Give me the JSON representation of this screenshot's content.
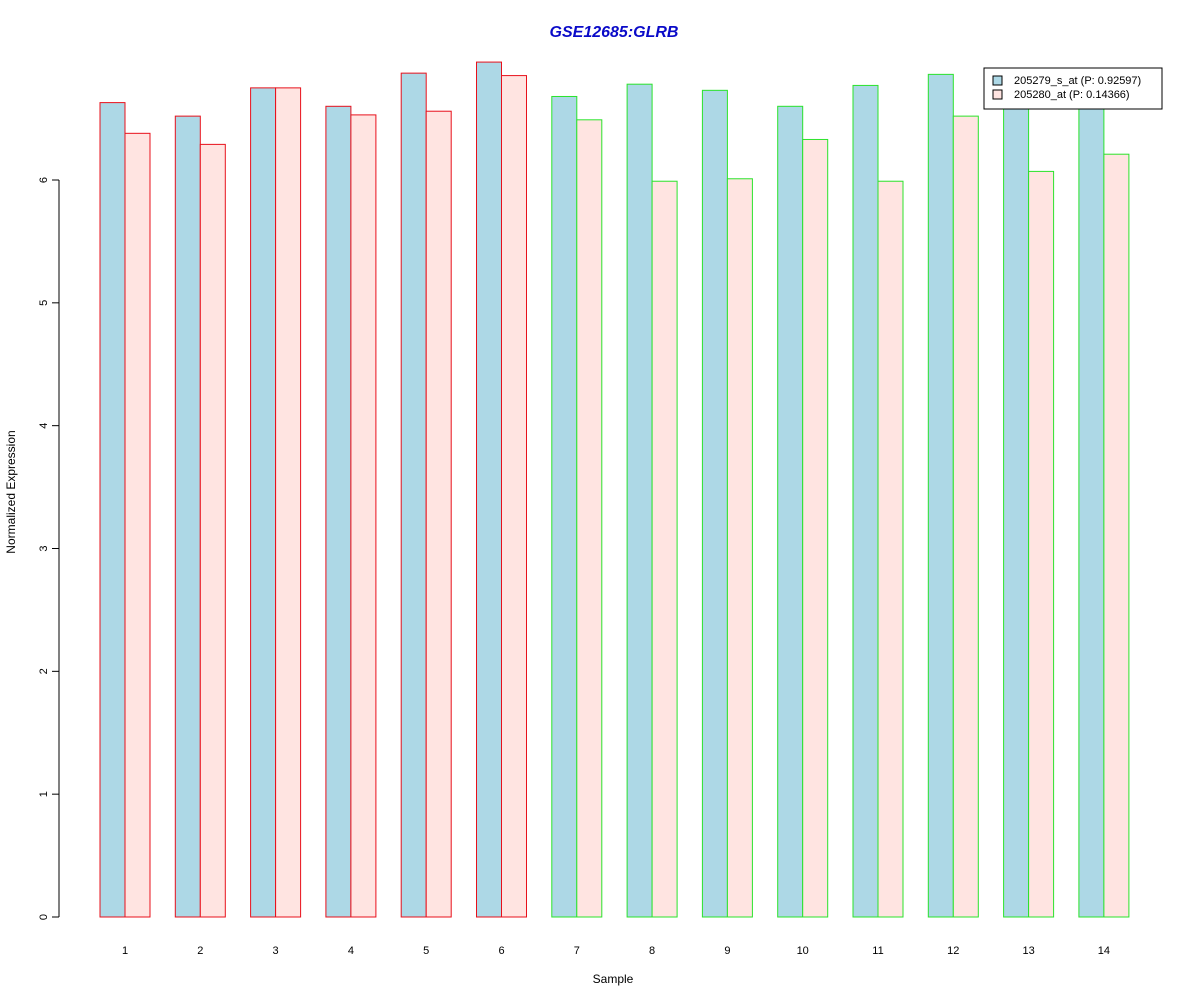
{
  "chart_data": {
    "type": "bar",
    "title": "GSE12685:GLRB",
    "xlabel": "Sample",
    "ylabel": "Normalized Expression",
    "categories": [
      "1",
      "2",
      "3",
      "4",
      "5",
      "6",
      "7",
      "8",
      "9",
      "10",
      "11",
      "12",
      "13",
      "14"
    ],
    "series": [
      {
        "name": "205279_s_at (P: 0.92597)",
        "fill": "#ADD8E6",
        "values": [
          6.63,
          6.52,
          6.75,
          6.6,
          6.87,
          6.96,
          6.68,
          6.78,
          6.73,
          6.6,
          6.77,
          6.86,
          6.61,
          6.62
        ]
      },
      {
        "name": "205280_at (P: 0.14366)",
        "fill": "#FFE4E1",
        "values": [
          6.38,
          6.29,
          6.75,
          6.53,
          6.56,
          6.85,
          6.49,
          5.99,
          6.01,
          6.33,
          5.99,
          6.52,
          6.07,
          6.21
        ]
      }
    ],
    "group_border_colors": [
      "#E8101B",
      "#E8101B",
      "#E8101B",
      "#E8101B",
      "#E8101B",
      "#E8101B",
      "#2BE32B",
      "#2BE32B",
      "#2BE32B",
      "#2BE32B",
      "#2BE32B",
      "#2BE32B",
      "#2BE32B",
      "#2BE32B"
    ],
    "yticks": [
      0,
      1,
      2,
      3,
      4,
      5,
      6
    ],
    "ylim": [
      0,
      7
    ],
    "grid": false,
    "legend_position": "top-right",
    "colors": {
      "title": "#0A0AC8",
      "axis": "#000000"
    }
  }
}
